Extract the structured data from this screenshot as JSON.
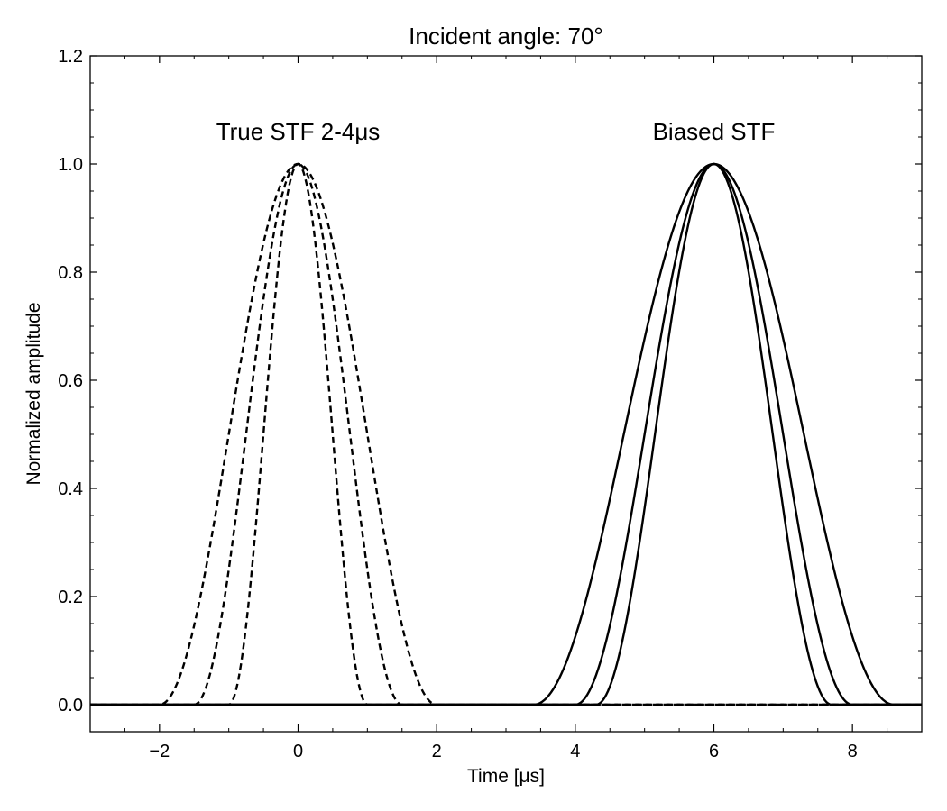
{
  "chart_data": {
    "type": "line",
    "title": "Incident angle: 70°",
    "xlabel": "Time [μs]",
    "ylabel": "Normalized amplitude",
    "xlim": [
      -3,
      9
    ],
    "ylim": [
      -0.05,
      1.2
    ],
    "xticks": [
      -2,
      0,
      2,
      4,
      6,
      8
    ],
    "xtick_labels": [
      "−2",
      "0",
      "2",
      "4",
      "6",
      "8"
    ],
    "yticks": [
      0.0,
      0.2,
      0.4,
      0.6,
      0.8,
      1.0,
      1.2
    ],
    "ytick_labels": [
      "0.0",
      "0.2",
      "0.4",
      "0.6",
      "0.8",
      "1.0",
      "1.2"
    ],
    "grid": false,
    "annotations": [
      {
        "text": "True STF 2-4μs",
        "x": 0.0,
        "y": 1.06
      },
      {
        "text": "Biased STF",
        "x": 6.0,
        "y": 1.06
      }
    ],
    "series": [
      {
        "style": "dashed",
        "shape": "cosine-squared pulse",
        "center": 0.0,
        "duration": 2.0
      },
      {
        "style": "dashed",
        "shape": "cosine-squared pulse",
        "center": 0.0,
        "duration": 3.0
      },
      {
        "style": "dashed",
        "shape": "cosine-squared pulse",
        "center": 0.0,
        "duration": 4.0
      },
      {
        "style": "solid",
        "shape": "cosine-squared pulse",
        "center": 6.0,
        "duration": 3.4
      },
      {
        "style": "solid",
        "shape": "cosine-squared pulse",
        "center": 6.0,
        "duration": 4.0
      },
      {
        "style": "solid",
        "shape": "cosine-squared pulse",
        "center": 6.0,
        "duration": 5.2
      }
    ],
    "line_color": "#000000"
  }
}
